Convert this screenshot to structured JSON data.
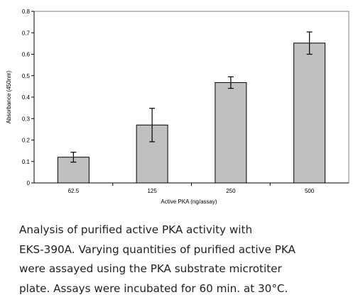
{
  "chart_data": {
    "type": "bar",
    "categories": [
      "62.5",
      "125",
      "250",
      "500"
    ],
    "values": [
      0.12,
      0.27,
      0.468,
      0.652
    ],
    "errors": [
      0.023,
      0.078,
      0.027,
      0.052
    ],
    "xlabel": "Active PKA (ng/assay)",
    "ylabel": "Absorbance (450nm)",
    "ylim": [
      0,
      0.8
    ],
    "yticks": [
      "0",
      "0.1",
      "0.2",
      "0.3",
      "0.4",
      "0.5",
      "0.6",
      "0.7",
      "0.8"
    ],
    "bar_color": "#c0c0c0",
    "grid": false,
    "legend": "none"
  },
  "caption": "Analysis of purified active PKA activity with\nEKS-390A.  Varying quantities of purified active PKA\nwere assayed using the PKA substrate microtiter\nplate.  Assays were incubated for 60 min. at 30°C."
}
